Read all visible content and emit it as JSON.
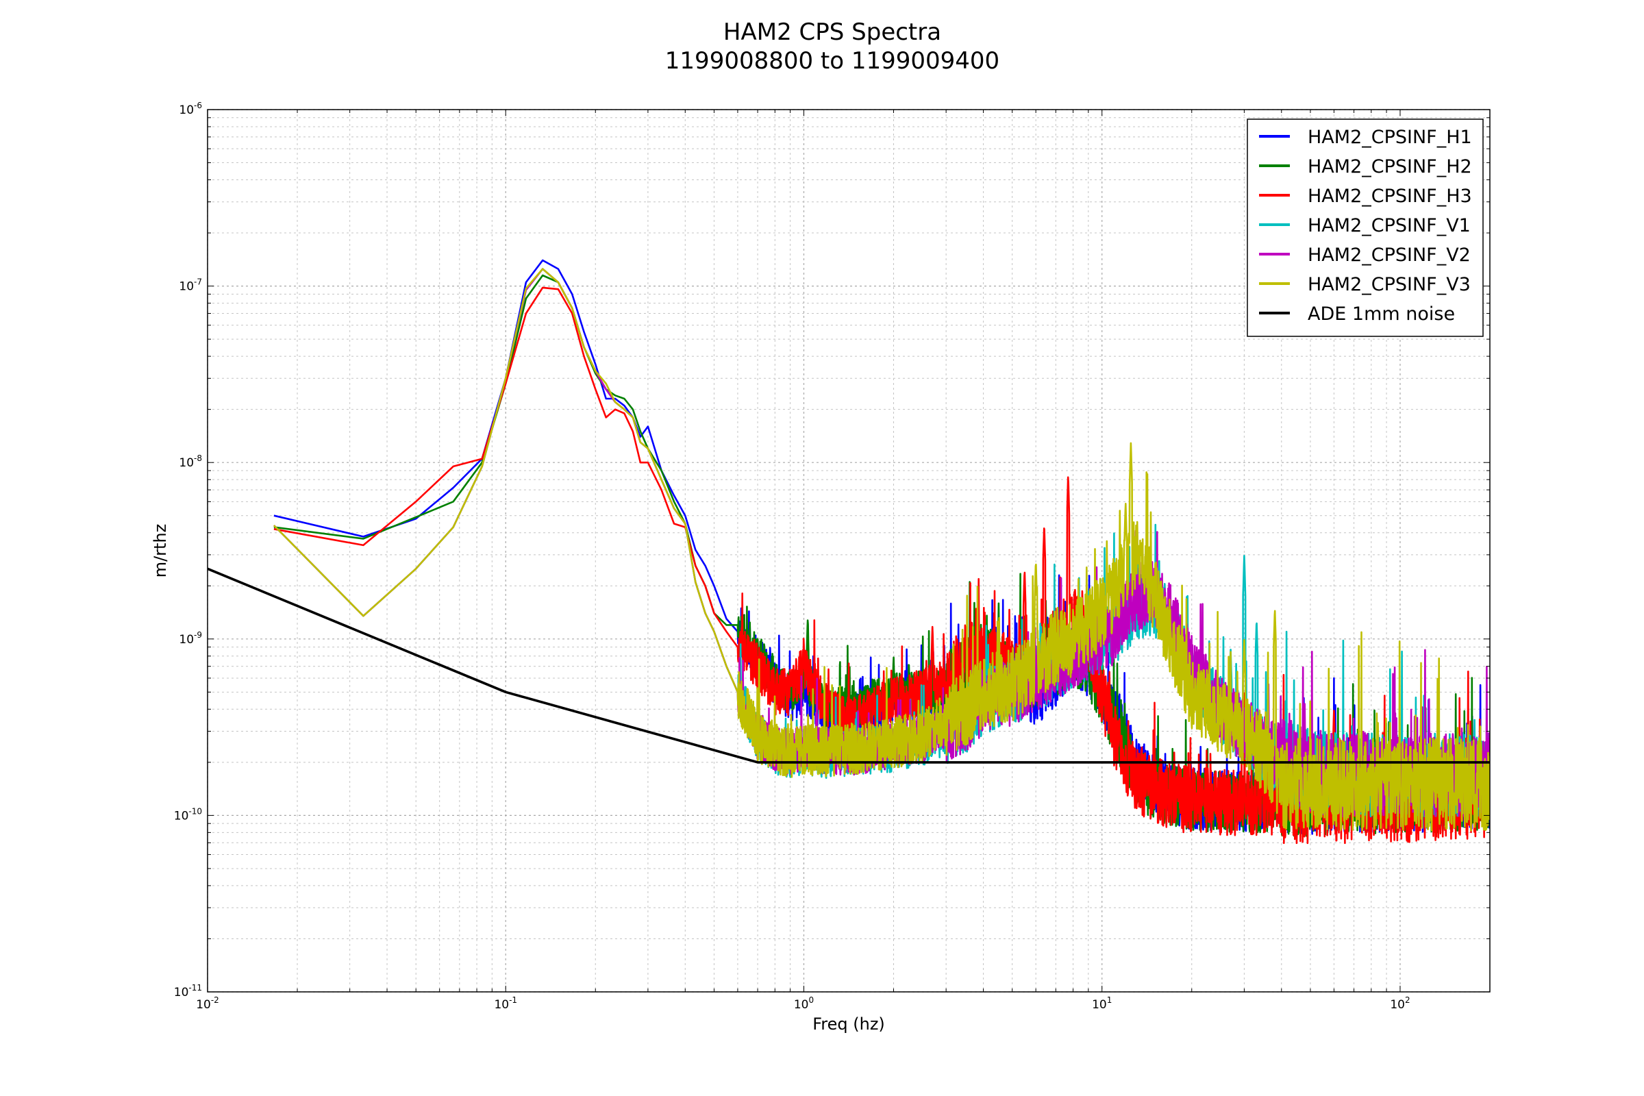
{
  "chart_data": {
    "type": "line",
    "title": "HAM2 CPS Spectra",
    "subtitle": "1199008800 to 1199009400",
    "xlabel": "Freq (hz)",
    "ylabel": "m/rthz",
    "xscale": "log",
    "yscale": "log",
    "xlim": [
      0.01,
      200
    ],
    "ylim": [
      1e-11,
      1e-06
    ],
    "grid": true,
    "legend_position": "top-right",
    "x_ticks": [
      {
        "base": "10",
        "exp": "-2",
        "value": 0.01
      },
      {
        "base": "10",
        "exp": "-1",
        "value": 0.1
      },
      {
        "base": "10",
        "exp": "0",
        "value": 1
      },
      {
        "base": "10",
        "exp": "1",
        "value": 10
      },
      {
        "base": "10",
        "exp": "2",
        "value": 100
      }
    ],
    "y_ticks": [
      {
        "base": "10",
        "exp": "-11",
        "value": 1e-11
      },
      {
        "base": "10",
        "exp": "-10",
        "value": 1e-10
      },
      {
        "base": "10",
        "exp": "-9",
        "value": 1e-09
      },
      {
        "base": "10",
        "exp": "-8",
        "value": 1e-08
      },
      {
        "base": "10",
        "exp": "-7",
        "value": 1e-07
      },
      {
        "base": "10",
        "exp": "-6",
        "value": 1e-06
      }
    ],
    "series": [
      {
        "name": "HAM2_CPSINF_H1",
        "color": "#0000ff",
        "noise": 0.35,
        "seed": 11,
        "x": [
          0.0167,
          0.0333,
          0.05,
          0.0667,
          0.0833,
          0.1,
          0.117,
          0.133,
          0.15,
          0.167,
          0.183,
          0.2,
          0.217,
          0.233,
          0.25,
          0.267,
          0.283,
          0.3,
          0.333,
          0.367,
          0.4,
          0.433,
          0.467,
          0.5,
          0.55,
          0.6,
          0.7,
          0.8,
          0.9,
          1.0,
          1.2,
          1.5,
          2.0,
          2.5,
          3.0,
          3.5,
          4.0,
          5.0,
          6.0,
          7.0,
          8.0,
          9.0,
          10.0,
          11.0,
          12.0,
          13.0,
          15.0,
          17.0,
          20.0,
          25.0,
          30.0,
          40.0,
          50.0,
          60.0,
          70.0,
          100.0,
          150.0,
          200.0
        ],
        "y": [
          5e-09,
          3.8e-09,
          4.8e-09,
          7.2e-09,
          1.05e-08,
          3e-08,
          1.05e-07,
          1.4e-07,
          1.25e-07,
          9e-08,
          5.5e-08,
          3.6e-08,
          2.3e-08,
          2.3e-08,
          2.1e-08,
          1.8e-08,
          1.4e-08,
          1.6e-08,
          9e-09,
          6.5e-09,
          5e-09,
          3.2e-09,
          2.6e-09,
          2e-09,
          1.3e-09,
          1.1e-09,
          8e-10,
          5.5e-10,
          4.5e-10,
          5e-10,
          3.5e-10,
          3.7e-10,
          4.2e-10,
          4.6e-10,
          5e-10,
          6e-10,
          7e-10,
          6e-10,
          4.8e-10,
          6e-10,
          8e-10,
          7e-10,
          5e-10,
          3.5e-10,
          2.6e-10,
          1.9e-10,
          1.5e-10,
          1.3e-10,
          1.25e-10,
          1.2e-10,
          1.2e-10,
          1.25e-10,
          1.3e-10,
          1.3e-10,
          1.3e-10,
          1.3e-10,
          1.35e-10,
          1.4e-10
        ],
        "spikes": [
          [
            1.0,
            6e-10
          ],
          [
            2.0,
            7e-10
          ],
          [
            4.4,
            1.2e-09
          ],
          [
            5.3,
            1e-09
          ]
        ]
      },
      {
        "name": "HAM2_CPSINF_H2",
        "color": "#008000",
        "noise": 0.35,
        "seed": 23,
        "x": [
          0.0167,
          0.0333,
          0.05,
          0.0667,
          0.0833,
          0.1,
          0.117,
          0.133,
          0.15,
          0.167,
          0.183,
          0.2,
          0.217,
          0.233,
          0.25,
          0.267,
          0.283,
          0.3,
          0.333,
          0.367,
          0.4,
          0.433,
          0.467,
          0.5,
          0.55,
          0.6,
          0.7,
          0.8,
          0.9,
          1.0,
          1.2,
          1.5,
          2.0,
          2.5,
          3.0,
          3.5,
          4.0,
          5.0,
          6.0,
          7.0,
          8.0,
          9.0,
          10.0,
          11.0,
          12.0,
          13.0,
          15.0,
          17.0,
          20.0,
          25.0,
          30.0,
          40.0,
          50.0,
          60.0,
          70.0,
          100.0,
          150.0,
          200.0
        ],
        "y": [
          4.3e-09,
          3.7e-09,
          4.9e-09,
          6e-09,
          1e-08,
          2.8e-08,
          8.5e-08,
          1.15e-07,
          1.05e-07,
          7.5e-08,
          4.5e-08,
          3.2e-08,
          2.6e-08,
          2.4e-08,
          2.3e-08,
          2e-08,
          1.5e-08,
          1.2e-08,
          9e-09,
          6e-09,
          4.5e-09,
          2.6e-09,
          2e-09,
          1.4e-09,
          1.2e-09,
          1.2e-09,
          8e-10,
          6e-10,
          5e-10,
          6e-10,
          4e-10,
          4e-10,
          5e-10,
          5e-10,
          5e-10,
          7e-10,
          8e-10,
          6.5e-10,
          6e-10,
          7e-10,
          8e-10,
          7e-10,
          5e-10,
          3.2e-10,
          2.3e-10,
          1.7e-10,
          1.4e-10,
          1.3e-10,
          1.2e-10,
          1.2e-10,
          1.2e-10,
          1.2e-10,
          1.25e-10,
          1.3e-10,
          1.3e-10,
          1.3e-10,
          1.3e-10,
          1.4e-10
        ],
        "spikes": [
          [
            1.03,
            1.3e-09
          ],
          [
            1.7,
            6e-10
          ],
          [
            2.0,
            8e-10
          ],
          [
            4.5,
            1.4e-09
          ],
          [
            6.5,
            1.4e-09
          ]
        ]
      },
      {
        "name": "HAM2_CPSINF_H3",
        "color": "#ff0000",
        "noise": 0.38,
        "seed": 37,
        "x": [
          0.0167,
          0.0333,
          0.05,
          0.0667,
          0.0833,
          0.1,
          0.117,
          0.133,
          0.15,
          0.167,
          0.183,
          0.2,
          0.217,
          0.233,
          0.25,
          0.267,
          0.283,
          0.3,
          0.333,
          0.367,
          0.4,
          0.433,
          0.467,
          0.5,
          0.55,
          0.6,
          0.7,
          0.8,
          0.9,
          1.0,
          1.2,
          1.5,
          2.0,
          2.5,
          3.0,
          3.5,
          4.0,
          5.0,
          6.0,
          7.0,
          8.0,
          9.0,
          10.0,
          11.0,
          12.0,
          13.0,
          15.0,
          17.0,
          20.0,
          25.0,
          30.0,
          40.0,
          50.0,
          60.0,
          70.0,
          100.0,
          150.0,
          200.0
        ],
        "y": [
          4.2e-09,
          3.4e-09,
          6e-09,
          9.5e-09,
          1.05e-08,
          2.8e-08,
          7e-08,
          9.8e-08,
          9.6e-08,
          7e-08,
          4e-08,
          2.6e-08,
          1.8e-08,
          2e-08,
          1.9e-08,
          1.5e-08,
          1e-08,
          1e-08,
          7e-09,
          4.5e-09,
          4.3e-09,
          2.6e-09,
          2e-09,
          1.4e-09,
          1.1e-09,
          9e-10,
          7e-10,
          5e-10,
          5e-10,
          7e-10,
          4e-10,
          3.5e-10,
          4.5e-10,
          5e-10,
          6e-10,
          8e-10,
          8e-10,
          7e-10,
          6e-10,
          1e-09,
          1.3e-09,
          1e-09,
          5e-10,
          2.8e-10,
          2e-10,
          1.6e-10,
          1.4e-10,
          1.3e-10,
          1.2e-10,
          1.2e-10,
          1.15e-10,
          1.2e-10,
          1.2e-10,
          1.2e-10,
          1.2e-10,
          1.2e-10,
          1.25e-10,
          1.3e-10
        ],
        "spikes": [
          [
            0.9,
            6.5e-10
          ],
          [
            1.0,
            8.5e-10
          ],
          [
            2.7,
            1.2e-09
          ],
          [
            5.5,
            2.5e-09
          ],
          [
            6.4,
            4.5e-09
          ],
          [
            7.7,
            8.5e-09
          ],
          [
            60.0,
            4e-10
          ]
        ]
      },
      {
        "name": "HAM2_CPSINF_V1",
        "color": "#00bfbf",
        "noise": 0.38,
        "seed": 41,
        "x": [
          0.0167,
          0.0333,
          0.05,
          0.0667,
          0.0833,
          0.1,
          0.117,
          0.133,
          0.15,
          0.167,
          0.183,
          0.2,
          0.217,
          0.233,
          0.25,
          0.267,
          0.283,
          0.3,
          0.333,
          0.367,
          0.4,
          0.433,
          0.467,
          0.5,
          0.55,
          0.6,
          0.7,
          0.8,
          0.9,
          1.0,
          1.2,
          1.5,
          2.0,
          2.5,
          3.0,
          3.5,
          4.0,
          5.0,
          6.0,
          7.0,
          8.0,
          9.0,
          10.0,
          11.0,
          12.0,
          13.0,
          15.0,
          17.0,
          20.0,
          25.0,
          30.0,
          40.0,
          50.0,
          60.0,
          70.0,
          100.0,
          150.0,
          200.0
        ],
        "y": [
          4.4e-09,
          1.35e-09,
          2.5e-09,
          4.3e-09,
          9.5e-09,
          3e-08,
          9.5e-08,
          1.25e-07,
          1.05e-07,
          7.5e-08,
          4.5e-08,
          3.3e-08,
          2.6e-08,
          2.2e-08,
          2e-08,
          1.8e-08,
          1.3e-08,
          1.2e-08,
          8e-09,
          5.5e-09,
          4.5e-09,
          2.1e-09,
          1.4e-09,
          1.1e-09,
          7e-10,
          5e-10,
          2.8e-10,
          2.3e-10,
          2.2e-10,
          2.3e-10,
          2.2e-10,
          2.3e-10,
          2.4e-10,
          2.6e-10,
          3e-10,
          3.5e-10,
          4.5e-10,
          5e-10,
          6e-10,
          7e-10,
          8e-10,
          9e-10,
          1e-09,
          1.1e-09,
          1.3e-09,
          1.5e-09,
          1.6e-09,
          1.2e-09,
          6e-10,
          4e-10,
          3e-10,
          2e-10,
          1.8e-10,
          1.7e-10,
          1.7e-10,
          1.7e-10,
          1.7e-10,
          1.7e-10
        ],
        "spikes": [
          [
            27.0,
            9e-10
          ],
          [
            30.0,
            3e-09
          ],
          [
            33.0,
            1.3e-09
          ]
        ]
      },
      {
        "name": "HAM2_CPSINF_V2",
        "color": "#bf00bf",
        "noise": 0.38,
        "seed": 53,
        "x": [
          0.0167,
          0.0333,
          0.05,
          0.0667,
          0.0833,
          0.1,
          0.117,
          0.133,
          0.15,
          0.167,
          0.183,
          0.2,
          0.217,
          0.233,
          0.25,
          0.267,
          0.283,
          0.3,
          0.333,
          0.367,
          0.4,
          0.433,
          0.467,
          0.5,
          0.55,
          0.6,
          0.7,
          0.8,
          0.9,
          1.0,
          1.2,
          1.5,
          2.0,
          2.5,
          3.0,
          3.5,
          4.0,
          5.0,
          6.0,
          7.0,
          8.0,
          9.0,
          10.0,
          11.0,
          12.0,
          13.0,
          15.0,
          17.0,
          20.0,
          25.0,
          30.0,
          40.0,
          50.0,
          60.0,
          70.0,
          100.0,
          150.0,
          200.0
        ],
        "y": [
          4.4e-09,
          1.35e-09,
          2.5e-09,
          4.3e-09,
          9.5e-09,
          3e-08,
          9.5e-08,
          1.25e-07,
          1.05e-07,
          7.5e-08,
          4.5e-08,
          3.3e-08,
          2.6e-08,
          2.2e-08,
          2e-08,
          1.8e-08,
          1.3e-08,
          1.2e-08,
          8e-09,
          5.5e-09,
          4.5e-09,
          2.1e-09,
          1.4e-09,
          1.1e-09,
          7e-10,
          5e-10,
          2.8e-10,
          2.4e-10,
          2.3e-10,
          2.4e-10,
          2.3e-10,
          2.3e-10,
          2.5e-10,
          2.7e-10,
          3e-10,
          3.5e-10,
          4.5e-10,
          5e-10,
          6e-10,
          7e-10,
          8e-10,
          9e-10,
          1e-09,
          1.1e-09,
          1.4e-09,
          1.7e-09,
          1.8e-09,
          1.3e-09,
          7e-10,
          4e-10,
          3e-10,
          2.1e-10,
          1.8e-10,
          1.7e-10,
          1.7e-10,
          1.7e-10,
          1.7e-10,
          1.7e-10
        ],
        "spikes": [
          [
            20.0,
            7e-10
          ],
          [
            22.0,
            5e-10
          ]
        ]
      },
      {
        "name": "HAM2_CPSINF_V3",
        "color": "#bfbf00",
        "noise": 0.42,
        "seed": 67,
        "x": [
          0.0167,
          0.0333,
          0.05,
          0.0667,
          0.0833,
          0.1,
          0.117,
          0.133,
          0.15,
          0.167,
          0.183,
          0.2,
          0.217,
          0.233,
          0.25,
          0.267,
          0.283,
          0.3,
          0.333,
          0.367,
          0.4,
          0.433,
          0.467,
          0.5,
          0.55,
          0.6,
          0.7,
          0.8,
          0.9,
          1.0,
          1.2,
          1.5,
          2.0,
          2.5,
          3.0,
          3.5,
          4.0,
          5.0,
          6.0,
          7.0,
          8.0,
          9.0,
          10.0,
          11.0,
          12.0,
          13.0,
          15.0,
          17.0,
          20.0,
          25.0,
          30.0,
          40.0,
          50.0,
          60.0,
          70.0,
          100.0,
          150.0,
          200.0
        ],
        "y": [
          4.4e-09,
          1.35e-09,
          2.5e-09,
          4.3e-09,
          9.5e-09,
          3e-08,
          9.7e-08,
          1.25e-07,
          1.05e-07,
          7.5e-08,
          4.5e-08,
          3.3e-08,
          2.8e-08,
          2.2e-08,
          2e-08,
          1.8e-08,
          1.3e-08,
          1.2e-08,
          8e-09,
          5.5e-09,
          4.5e-09,
          2.1e-09,
          1.4e-09,
          1.1e-09,
          7e-10,
          5e-10,
          2.8e-10,
          2.4e-10,
          2.3e-10,
          2.4e-10,
          2.3e-10,
          2.4e-10,
          2.6e-10,
          2.8e-10,
          3.5e-10,
          4e-10,
          5e-10,
          5.5e-10,
          7e-10,
          9e-10,
          1e-09,
          1.2e-09,
          1.4e-09,
          1.8e-09,
          2.5e-09,
          3e-09,
          1.8e-09,
          1e-09,
          5e-10,
          3.5e-10,
          3e-10,
          1.5e-10,
          1.5e-10,
          1.5e-10,
          1.5e-10,
          1.5e-10,
          1.5e-10,
          1.5e-10
        ],
        "spikes": [
          [
            12.5,
            1.3e-08
          ],
          [
            12.0,
            6e-09
          ],
          [
            14.0,
            3e-09
          ],
          [
            6.0,
            2.8e-09
          ],
          [
            38.0,
            1.5e-09
          ],
          [
            30.0,
            1e-09
          ]
        ]
      },
      {
        "name": "ADE 1mm noise",
        "color": "#000000",
        "noise": 0,
        "seed": 0,
        "x": [
          0.01,
          0.1,
          0.7,
          200.0
        ],
        "y": [
          2.5e-09,
          5e-10,
          2e-10,
          2e-10
        ],
        "spikes": []
      }
    ]
  }
}
